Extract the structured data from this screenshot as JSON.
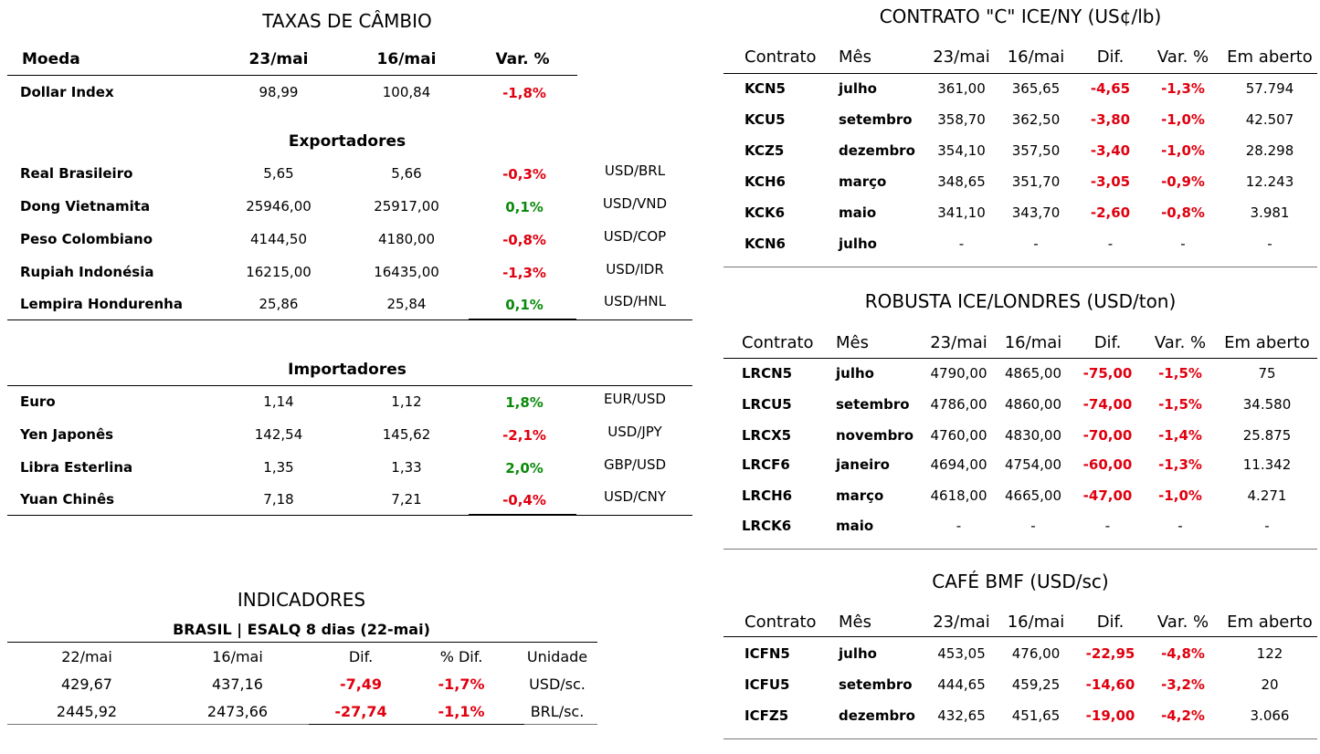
{
  "fx": {
    "title": "TAXAS DE CÂMBIO",
    "headers": [
      "Moeda",
      "23/mai",
      "16/mai",
      "Var. %"
    ],
    "dollar_index": {
      "name": "Dollar Index",
      "d23": "98,99",
      "d16": "100,84",
      "var": "-1,8%",
      "sign": "neg"
    },
    "exporters_title": "Exportadores",
    "exporters": [
      {
        "name": "Real Brasileiro",
        "d23": "5,65",
        "d16": "5,66",
        "var": "-0,3%",
        "sign": "neg",
        "pair": "USD/BRL"
      },
      {
        "name": "Dong Vietnamita",
        "d23": "25946,00",
        "d16": "25917,00",
        "var": "0,1%",
        "sign": "pos",
        "pair": "USD/VND"
      },
      {
        "name": "Peso Colombiano",
        "d23": "4144,50",
        "d16": "4180,00",
        "var": "-0,8%",
        "sign": "neg",
        "pair": "USD/COP"
      },
      {
        "name": "Rupiah Indonésia",
        "d23": "16215,00",
        "d16": "16435,00",
        "var": "-1,3%",
        "sign": "neg",
        "pair": "USD/IDR"
      },
      {
        "name": "Lempira Hondurenha",
        "d23": "25,86",
        "d16": "25,84",
        "var": "0,1%",
        "sign": "pos",
        "pair": "USD/HNL"
      }
    ],
    "importers_title": "Importadores",
    "importers": [
      {
        "name": "Euro",
        "d23": "1,14",
        "d16": "1,12",
        "var": "1,8%",
        "sign": "pos",
        "pair": "EUR/USD"
      },
      {
        "name": "Yen Japonês",
        "d23": "142,54",
        "d16": "145,62",
        "var": "-2,1%",
        "sign": "neg",
        "pair": "USD/JPY"
      },
      {
        "name": "Libra Esterlina",
        "d23": "1,35",
        "d16": "1,33",
        "var": "2,0%",
        "sign": "pos",
        "pair": "GBP/USD"
      },
      {
        "name": "Yuan Chinês",
        "d23": "7,18",
        "d16": "7,21",
        "var": "-0,4%",
        "sign": "neg",
        "pair": "USD/CNY"
      }
    ]
  },
  "indicators": {
    "title": "INDICADORES",
    "subtitle": "BRASIL | ESALQ 8 dias (22-mai)",
    "headers": [
      "22/mai",
      "16/mai",
      "Dif.",
      "% Dif.",
      "Unidade"
    ],
    "rows": [
      {
        "a": "429,67",
        "b": "437,16",
        "dif": "-7,49",
        "pct": "-1,7%",
        "unit": "USD/sc."
      },
      {
        "a": "2445,92",
        "b": "2473,66",
        "dif": "-27,74",
        "pct": "-1,1%",
        "unit": "BRL/sc."
      }
    ]
  },
  "tables": [
    {
      "title": "CONTRATO \"C\" ICE/NY (US¢/lb)",
      "headers": [
        "Contrato",
        "Mês",
        "23/mai",
        "16/mai",
        "Dif.",
        "Var. %",
        "Em aberto"
      ],
      "rows": [
        [
          "KCN5",
          "julho",
          "361,00",
          "365,65",
          "-4,65",
          "-1,3%",
          "57.794"
        ],
        [
          "KCU5",
          "setembro",
          "358,70",
          "362,50",
          "-3,80",
          "-1,0%",
          "42.507"
        ],
        [
          "KCZ5",
          "dezembro",
          "354,10",
          "357,50",
          "-3,40",
          "-1,0%",
          "28.298"
        ],
        [
          "KCH6",
          "março",
          "348,65",
          "351,70",
          "-3,05",
          "-0,9%",
          "12.243"
        ],
        [
          "KCK6",
          "maio",
          "341,10",
          "343,70",
          "-2,60",
          "-0,8%",
          "3.981"
        ],
        [
          "KCN6",
          "julho",
          "-",
          "-",
          "-",
          "-",
          "-"
        ]
      ]
    },
    {
      "title": "ROBUSTA ICE/LONDRES (USD/ton)",
      "headers": [
        "Contrato",
        "Mês",
        "23/mai",
        "16/mai",
        "Dif.",
        "Var. %",
        "Em aberto"
      ],
      "rows": [
        [
          "LRCN5",
          "julho",
          "4790,00",
          "4865,00",
          "-75,00",
          "-1,5%",
          "75"
        ],
        [
          "LRCU5",
          "setembro",
          "4786,00",
          "4860,00",
          "-74,00",
          "-1,5%",
          "34.580"
        ],
        [
          "LRCX5",
          "novembro",
          "4760,00",
          "4830,00",
          "-70,00",
          "-1,4%",
          "25.875"
        ],
        [
          "LRCF6",
          "janeiro",
          "4694,00",
          "4754,00",
          "-60,00",
          "-1,3%",
          "11.342"
        ],
        [
          "LRCH6",
          "março",
          "4618,00",
          "4665,00",
          "-47,00",
          "-1,0%",
          "4.271"
        ],
        [
          "LRCK6",
          "maio",
          "-",
          "-",
          "-",
          "-",
          "-"
        ]
      ]
    },
    {
      "title": "CAFÉ BMF (USD/sc)",
      "headers": [
        "Contrato",
        "Mês",
        "23/mai",
        "16/mai",
        "Dif.",
        "Var. %",
        "Em aberto"
      ],
      "rows": [
        [
          "ICFN5",
          "julho",
          "453,05",
          "476,00",
          "-22,95",
          "-4,8%",
          "122"
        ],
        [
          "ICFU5",
          "setembro",
          "444,65",
          "459,25",
          "-14,60",
          "-3,2%",
          "20"
        ],
        [
          "ICFZ5",
          "dezembro",
          "432,65",
          "451,65",
          "-19,00",
          "-4,2%",
          "3.066"
        ]
      ]
    }
  ],
  "colors": {
    "negative": "#e0000f",
    "positive": "#0a8a0a"
  }
}
